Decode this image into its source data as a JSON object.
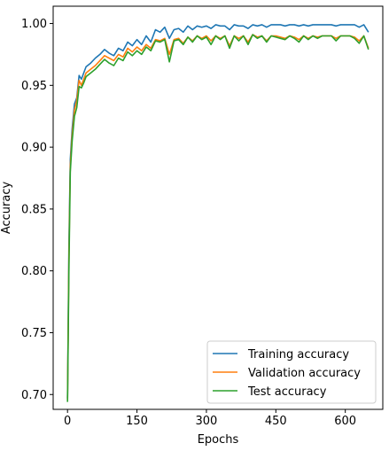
{
  "chart_data": {
    "type": "line",
    "xlabel": "Epochs",
    "ylabel": "Accuracy",
    "xlim": [
      -31,
      681
    ],
    "ylim": [
      0.688,
      1.014
    ],
    "xticks": [
      0,
      150,
      300,
      450,
      600
    ],
    "yticks": [
      0.7,
      0.75,
      0.8,
      0.85,
      0.9,
      0.95,
      1.0
    ],
    "xtick_labels": [
      "0",
      "150",
      "300",
      "450",
      "600"
    ],
    "ytick_labels": [
      "0.70",
      "0.75",
      "0.80",
      "0.85",
      "0.90",
      "0.95",
      "1.00"
    ],
    "grid": false,
    "legend_position": "lower-right",
    "series": [
      {
        "name": "Training accuracy",
        "color": "#1f77b4",
        "x": [
          0,
          3,
          6,
          10,
          15,
          20,
          25,
          30,
          35,
          40,
          50,
          60,
          70,
          80,
          90,
          100,
          110,
          120,
          130,
          140,
          150,
          160,
          170,
          180,
          190,
          200,
          210,
          220,
          230,
          240,
          250,
          260,
          270,
          280,
          290,
          300,
          310,
          320,
          330,
          340,
          350,
          360,
          370,
          380,
          390,
          400,
          410,
          420,
          430,
          440,
          450,
          460,
          470,
          480,
          490,
          500,
          510,
          520,
          530,
          540,
          550,
          560,
          570,
          580,
          590,
          600,
          610,
          620,
          630,
          640,
          650
        ],
        "y": [
          0.697,
          0.82,
          0.89,
          0.915,
          0.935,
          0.94,
          0.958,
          0.955,
          0.96,
          0.965,
          0.968,
          0.972,
          0.975,
          0.979,
          0.976,
          0.974,
          0.98,
          0.978,
          0.985,
          0.982,
          0.987,
          0.983,
          0.99,
          0.985,
          0.995,
          0.993,
          0.997,
          0.988,
          0.995,
          0.996,
          0.993,
          0.998,
          0.995,
          0.998,
          0.997,
          0.998,
          0.996,
          0.999,
          0.998,
          0.998,
          0.995,
          0.999,
          0.998,
          0.998,
          0.996,
          0.999,
          0.998,
          0.999,
          0.997,
          0.999,
          0.999,
          0.999,
          0.998,
          0.999,
          0.999,
          0.998,
          0.999,
          0.998,
          0.999,
          0.999,
          0.999,
          0.999,
          0.999,
          0.998,
          0.999,
          0.999,
          0.999,
          0.999,
          0.997,
          0.999,
          0.993
        ]
      },
      {
        "name": "Validation accuracy",
        "color": "#ff7f0e",
        "x": [
          0,
          3,
          6,
          10,
          15,
          20,
          25,
          30,
          35,
          40,
          50,
          60,
          70,
          80,
          90,
          100,
          110,
          120,
          130,
          140,
          150,
          160,
          170,
          180,
          190,
          200,
          210,
          220,
          230,
          240,
          250,
          260,
          270,
          280,
          290,
          300,
          310,
          320,
          330,
          340,
          350,
          360,
          370,
          380,
          390,
          400,
          410,
          420,
          430,
          440,
          450,
          460,
          470,
          480,
          490,
          500,
          510,
          520,
          530,
          540,
          550,
          560,
          570,
          580,
          590,
          600,
          610,
          620,
          630,
          640,
          650
        ],
        "y": [
          0.696,
          0.81,
          0.885,
          0.91,
          0.93,
          0.938,
          0.954,
          0.95,
          0.955,
          0.96,
          0.963,
          0.966,
          0.97,
          0.974,
          0.972,
          0.97,
          0.975,
          0.973,
          0.98,
          0.977,
          0.981,
          0.978,
          0.983,
          0.98,
          0.987,
          0.986,
          0.988,
          0.975,
          0.987,
          0.988,
          0.984,
          0.989,
          0.986,
          0.99,
          0.988,
          0.99,
          0.986,
          0.99,
          0.988,
          0.99,
          0.982,
          0.99,
          0.988,
          0.99,
          0.985,
          0.991,
          0.989,
          0.99,
          0.986,
          0.99,
          0.99,
          0.989,
          0.988,
          0.99,
          0.989,
          0.987,
          0.99,
          0.988,
          0.99,
          0.989,
          0.99,
          0.99,
          0.99,
          0.988,
          0.99,
          0.99,
          0.99,
          0.989,
          0.986,
          0.99,
          0.98
        ]
      },
      {
        "name": "Test accuracy",
        "color": "#2ca02c",
        "x": [
          0,
          3,
          6,
          10,
          15,
          20,
          25,
          30,
          35,
          40,
          50,
          60,
          70,
          80,
          90,
          100,
          110,
          120,
          130,
          140,
          150,
          160,
          170,
          180,
          190,
          200,
          210,
          220,
          230,
          240,
          250,
          260,
          270,
          280,
          290,
          300,
          310,
          320,
          330,
          340,
          350,
          360,
          370,
          380,
          390,
          400,
          410,
          420,
          430,
          440,
          450,
          460,
          470,
          480,
          490,
          500,
          510,
          520,
          530,
          540,
          550,
          560,
          570,
          580,
          590,
          600,
          610,
          620,
          630,
          640,
          650
        ],
        "y": [
          0.694,
          0.8,
          0.88,
          0.905,
          0.925,
          0.932,
          0.949,
          0.948,
          0.952,
          0.957,
          0.96,
          0.963,
          0.967,
          0.971,
          0.968,
          0.966,
          0.972,
          0.97,
          0.977,
          0.974,
          0.978,
          0.975,
          0.981,
          0.978,
          0.986,
          0.985,
          0.987,
          0.969,
          0.986,
          0.987,
          0.983,
          0.989,
          0.985,
          0.99,
          0.987,
          0.989,
          0.983,
          0.99,
          0.987,
          0.99,
          0.98,
          0.99,
          0.986,
          0.99,
          0.983,
          0.991,
          0.988,
          0.99,
          0.985,
          0.99,
          0.989,
          0.988,
          0.987,
          0.99,
          0.988,
          0.985,
          0.99,
          0.987,
          0.99,
          0.988,
          0.99,
          0.99,
          0.99,
          0.986,
          0.99,
          0.99,
          0.99,
          0.988,
          0.984,
          0.99,
          0.979
        ]
      }
    ]
  }
}
